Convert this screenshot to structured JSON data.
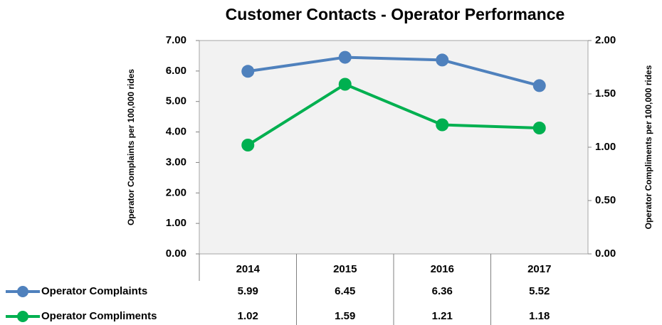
{
  "chart_data": {
    "type": "line",
    "title": "Customer Contacts - Operator Performance",
    "categories": [
      "2014",
      "2015",
      "2016",
      "2017"
    ],
    "series": [
      {
        "name": "Operator Complaints",
        "color": "#4f81bd",
        "values": [
          5.99,
          6.45,
          6.36,
          5.52
        ]
      },
      {
        "name": "Operator Compliments",
        "color": "#00b050",
        "axis": "y2",
        "values": [
          1.02,
          1.59,
          1.21,
          1.18
        ]
      }
    ],
    "ylabel": "Operator Complaints per 100,000 rides",
    "y2label": "Operator Compliments per 100,000 rides",
    "ylim": [
      0,
      7
    ],
    "yticks": [
      {
        "value": 0,
        "label": "0.00"
      },
      {
        "value": 1,
        "label": "1.00"
      },
      {
        "value": 2,
        "label": "2.00"
      },
      {
        "value": 3,
        "label": "3.00"
      },
      {
        "value": 4,
        "label": "4.00"
      },
      {
        "value": 5,
        "label": "5.00"
      },
      {
        "value": 6,
        "label": "6.00"
      },
      {
        "value": 7,
        "label": "7.00"
      }
    ],
    "y2lim": [
      0,
      2
    ],
    "y2ticks": [
      {
        "value": 0,
        "label": "0.00"
      },
      {
        "value": 0.5,
        "label": "0.50"
      },
      {
        "value": 1,
        "label": "1.00"
      },
      {
        "value": 1.5,
        "label": "1.50"
      },
      {
        "value": 2,
        "label": "2.00"
      }
    ]
  }
}
